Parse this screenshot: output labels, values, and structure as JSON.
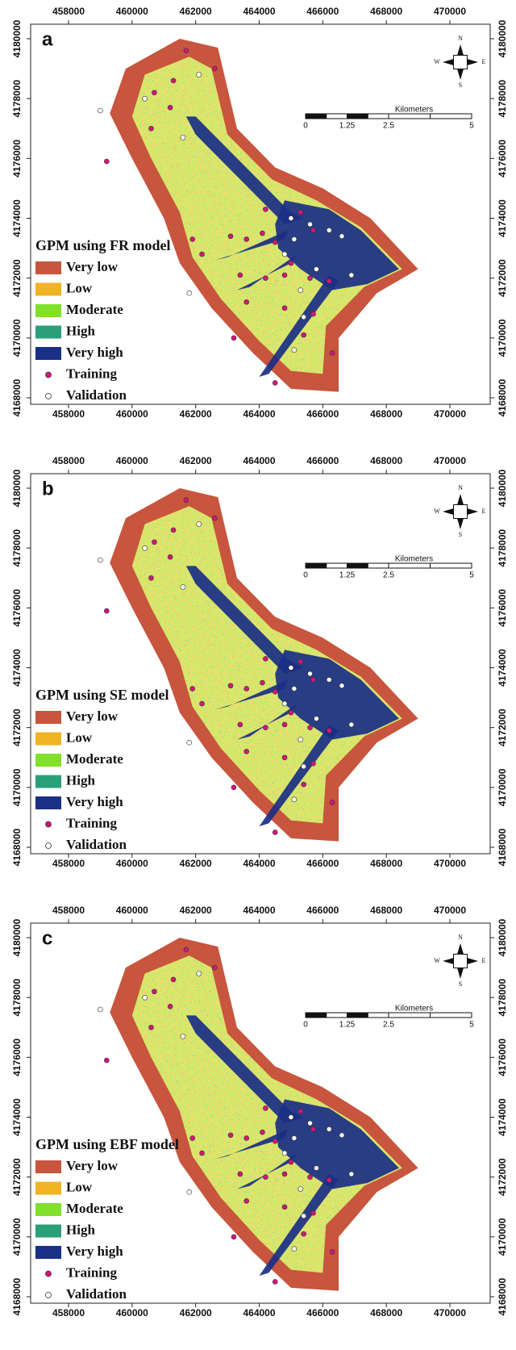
{
  "panels": [
    {
      "label": "a",
      "legend_title": "GPM using FR model"
    },
    {
      "label": "b",
      "legend_title": "GPM using SE model"
    },
    {
      "label": "c",
      "legend_title": "GPM using EBF model"
    }
  ],
  "eastings": [
    458000,
    460000,
    462000,
    464000,
    466000,
    468000,
    470000
  ],
  "northings": [
    4168000,
    4170000,
    4172000,
    4174000,
    4176000,
    4178000,
    4180000
  ],
  "legend_items": [
    {
      "name": "Very low",
      "color": "#c8553d"
    },
    {
      "name": "Low",
      "color": "#f0b323"
    },
    {
      "name": "Moderate",
      "color": "#80e02a"
    },
    {
      "name": "High",
      "color": "#2a9f78"
    },
    {
      "name": "Very high",
      "color": "#1a2f86"
    },
    {
      "name": "Training",
      "color": "#d4157d"
    },
    {
      "name": "Validation",
      "color": "#ffffff"
    }
  ],
  "scale_bar": {
    "title": "Kilometers",
    "ticks": [
      0,
      1.25,
      2.5,
      5
    ]
  },
  "compass": {
    "north": "N",
    "south": "S",
    "east": "E",
    "west": "W"
  }
}
